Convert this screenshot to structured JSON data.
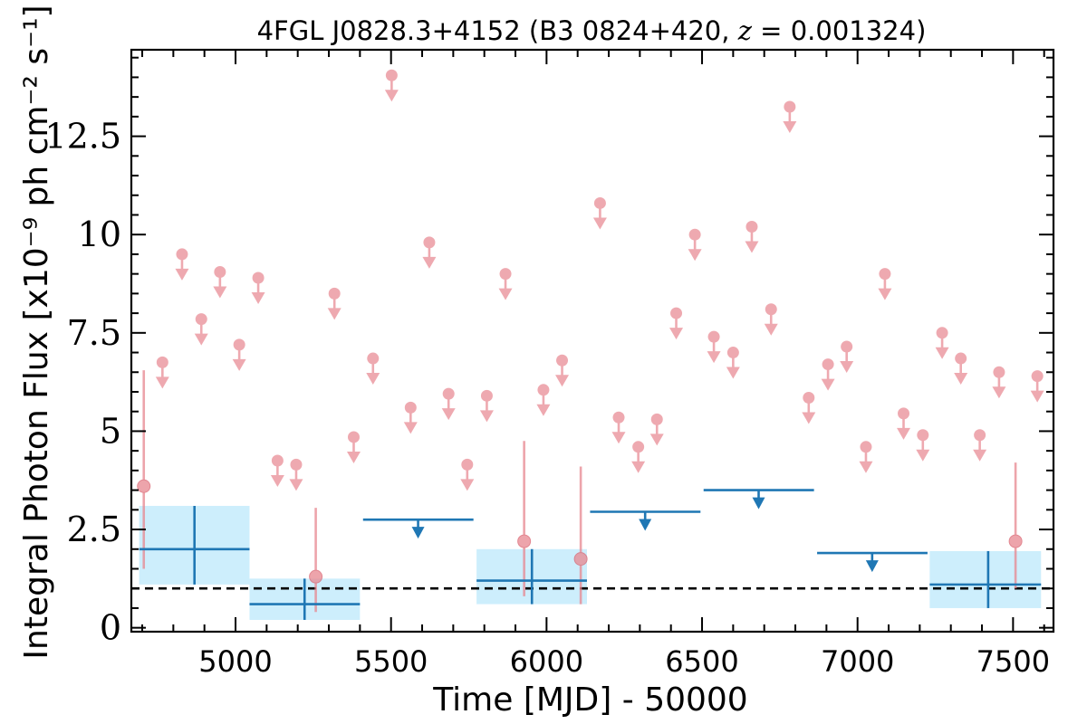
{
  "chart_data": {
    "type": "scatter",
    "title_parts": [
      "4FGL J0828.3+4152 (B3 0824+420, ",
      "z",
      " = 0.001324)"
    ],
    "xlabel": "Time [MJD] - 50000",
    "ylabel": "Integral Photon Flux [x10⁻⁹ ph cm⁻² s⁻¹]",
    "xlim": [
      4665,
      7630
    ],
    "ylim": [
      -0.1,
      14.7
    ],
    "x_ticks": [
      5000,
      5500,
      6000,
      6500,
      7000,
      7500
    ],
    "x_tick_labels": [
      "5000",
      "5500",
      "6000",
      "6500",
      "7000",
      "7500"
    ],
    "y_ticks": [
      0,
      2.5,
      5,
      7.5,
      10,
      12.5
    ],
    "y_tick_labels": [
      "0",
      "2.5",
      "5",
      "7.5",
      "10",
      "12.5"
    ],
    "reference_line": {
      "y": 1.0,
      "style": "dashed",
      "color": "#000000"
    },
    "colors": {
      "short_bins": "#e8868f",
      "long_bins": "#1f77b4",
      "long_bins_band": "#cdeefc"
    },
    "short_bins_detections": [
      {
        "x": 4705,
        "y": 3.6,
        "ylo": 1.5,
        "yhi": 6.55
      },
      {
        "x": 5258,
        "y": 1.3,
        "ylo": 0.4,
        "yhi": 3.05
      },
      {
        "x": 5928,
        "y": 2.2,
        "ylo": 0.8,
        "yhi": 4.75
      },
      {
        "x": 6110,
        "y": 1.75,
        "ylo": 0.6,
        "yhi": 4.1
      },
      {
        "x": 7508,
        "y": 2.2,
        "ylo": 1.0,
        "yhi": 4.2
      }
    ],
    "short_bins_upper_limits": [
      {
        "x": 4765,
        "y": 6.75
      },
      {
        "x": 4828,
        "y": 9.5
      },
      {
        "x": 4890,
        "y": 7.85
      },
      {
        "x": 4950,
        "y": 9.05
      },
      {
        "x": 5012,
        "y": 7.2
      },
      {
        "x": 5073,
        "y": 8.9
      },
      {
        "x": 5135,
        "y": 4.25
      },
      {
        "x": 5195,
        "y": 4.15
      },
      {
        "x": 5318,
        "y": 8.5
      },
      {
        "x": 5380,
        "y": 4.85
      },
      {
        "x": 5442,
        "y": 6.85
      },
      {
        "x": 5502,
        "y": 14.05
      },
      {
        "x": 5563,
        "y": 5.6
      },
      {
        "x": 5623,
        "y": 9.8
      },
      {
        "x": 5685,
        "y": 5.95
      },
      {
        "x": 5745,
        "y": 4.15
      },
      {
        "x": 5808,
        "y": 5.9
      },
      {
        "x": 5868,
        "y": 9.0
      },
      {
        "x": 5990,
        "y": 6.05
      },
      {
        "x": 6050,
        "y": 6.8
      },
      {
        "x": 6172,
        "y": 10.8
      },
      {
        "x": 6232,
        "y": 5.35
      },
      {
        "x": 6295,
        "y": 4.6
      },
      {
        "x": 6355,
        "y": 5.3
      },
      {
        "x": 6417,
        "y": 8.0
      },
      {
        "x": 6477,
        "y": 10.0
      },
      {
        "x": 6538,
        "y": 7.4
      },
      {
        "x": 6600,
        "y": 7.0
      },
      {
        "x": 6660,
        "y": 10.2
      },
      {
        "x": 6722,
        "y": 8.1
      },
      {
        "x": 6782,
        "y": 13.25
      },
      {
        "x": 6843,
        "y": 5.85
      },
      {
        "x": 6905,
        "y": 6.7
      },
      {
        "x": 6965,
        "y": 7.15
      },
      {
        "x": 7027,
        "y": 4.6
      },
      {
        "x": 7088,
        "y": 9.0
      },
      {
        "x": 7148,
        "y": 5.45
      },
      {
        "x": 7210,
        "y": 4.9
      },
      {
        "x": 7272,
        "y": 7.5
      },
      {
        "x": 7332,
        "y": 6.85
      },
      {
        "x": 7393,
        "y": 4.9
      },
      {
        "x": 7455,
        "y": 6.5
      },
      {
        "x": 7578,
        "y": 6.4
      }
    ],
    "long_bins_detections": [
      {
        "x_start": 4690,
        "x_end": 5045,
        "x_center": 4868,
        "y": 2.0,
        "ylo": 1.1,
        "yhi": 3.1
      },
      {
        "x_start": 5045,
        "x_end": 5400,
        "x_center": 5222,
        "y": 0.6,
        "ylo": 0.2,
        "yhi": 1.25
      },
      {
        "x_start": 5775,
        "x_end": 6130,
        "x_center": 5953,
        "y": 1.2,
        "ylo": 0.6,
        "yhi": 2.0
      },
      {
        "x_start": 7232,
        "x_end": 7590,
        "x_center": 7420,
        "y": 1.1,
        "ylo": 0.5,
        "yhi": 1.95
      }
    ],
    "long_bins_upper_limits": [
      {
        "x_start": 5410,
        "x_end": 5765,
        "x_center": 5587,
        "y": 2.75
      },
      {
        "x_start": 6140,
        "x_end": 6495,
        "x_center": 6317,
        "y": 2.95
      },
      {
        "x_start": 6505,
        "x_end": 6860,
        "x_center": 6682,
        "y": 3.5
      },
      {
        "x_start": 6870,
        "x_end": 7225,
        "x_center": 7047,
        "y": 1.9
      }
    ]
  }
}
